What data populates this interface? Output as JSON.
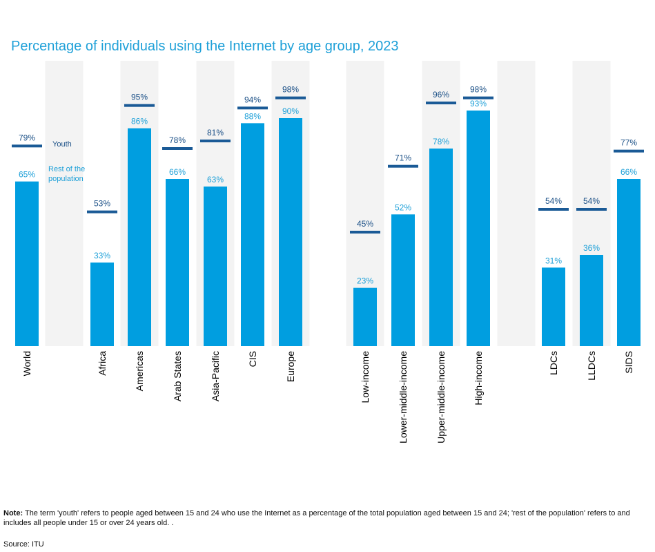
{
  "chart_data": {
    "type": "bar",
    "title": "Percentage of individuals using the Internet by age group, 2023",
    "categories": [
      "World",
      "Africa",
      "Americas",
      "Arab States",
      "Asia-Pacific",
      "CIS",
      "Europe",
      "Low-income",
      "Lower-middle-income",
      "Upper-middle-income",
      "High-income",
      "LDCs",
      "LLDCs",
      "SIDS"
    ],
    "series": [
      {
        "name": "Rest of the population",
        "values": [
          65,
          33,
          86,
          66,
          63,
          88,
          90,
          23,
          52,
          78,
          93,
          31,
          36,
          66
        ],
        "color": "#009ee0",
        "labels": [
          "65%",
          "33%",
          "86%",
          "66%",
          "63%",
          "88%",
          "90%",
          "23%",
          "52%",
          "78%",
          "93%",
          "31%",
          "36%",
          "66%"
        ]
      },
      {
        "name": "Youth",
        "values": [
          79,
          53,
          95,
          78,
          81,
          94,
          98,
          45,
          71,
          96,
          98,
          54,
          54,
          77
        ],
        "color": "#1a5a96",
        "labels": [
          "79%",
          "53%",
          "95%",
          "78%",
          "81%",
          "94%",
          "98%",
          "45%",
          "71%",
          "96%",
          "98%",
          "54%",
          "54%",
          "77%"
        ]
      }
    ],
    "ylim": [
      0,
      100
    ],
    "legend": {
      "youth": "Youth",
      "rest": "Rest of the population",
      "rest_line1": "Rest of the",
      "rest_line2": "population"
    }
  },
  "note_label": "Note:",
  "note_text": "The term 'youth' refers to people aged between 15 and 24 who use the Internet as a percentage of the total population aged between 15 and 24; 'rest of the population' refers to and includes all people under 15 or over 24 years old. .",
  "source": "Source: ITU"
}
